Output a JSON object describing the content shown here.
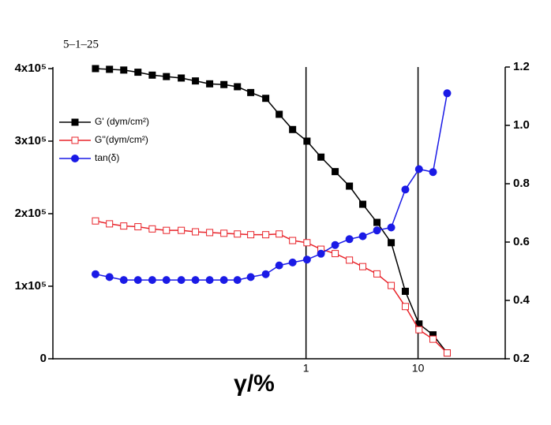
{
  "chart_data": {
    "type": "line",
    "title": "5–1–25",
    "xlabel": "γ/%",
    "xscale": "log",
    "xlim": [
      0.0055,
      60
    ],
    "xticks": [
      1,
      10
    ],
    "grid": true,
    "ylim": [
      0,
      400000
    ],
    "yticks": [
      0,
      {
        "value": 100000,
        "label": "1x10⁵"
      },
      {
        "value": 200000,
        "label": "2x10⁵"
      },
      {
        "value": 300000,
        "label": "3x10⁵"
      },
      {
        "value": 400000,
        "label": "4x10⁵"
      }
    ],
    "y2lim": [
      0.2,
      1.2
    ],
    "y2ticks": [
      0.2,
      0.4,
      0.6,
      0.8,
      {
        "value": 1,
        "label": "1.0"
      },
      1.2
    ],
    "legend": "upper left",
    "x": [
      0.0132,
      0.0176,
      0.0236,
      0.0316,
      0.0424,
      0.0567,
      0.077,
      0.103,
      0.138,
      0.185,
      0.244,
      0.321,
      0.437,
      0.576,
      0.759,
      1.02,
      1.36,
      1.82,
      2.44,
      3.21,
      4.3,
      5.76,
      7.7,
      10.2,
      13.6,
      18.2
    ],
    "series": [
      {
        "name": "G' (dym/cm²)",
        "color": "#000000",
        "marker": "square",
        "filled": true,
        "values": [
          400000,
          399000,
          398000,
          395000,
          391000,
          389000,
          387000,
          383000,
          379000,
          378000,
          375000,
          367000,
          359000,
          337000,
          316000,
          300000,
          278000,
          258000,
          238000,
          213000,
          188000,
          160000,
          93000,
          48000,
          33000,
          8000
        ]
      },
      {
        "name": "G''(dym/cm²)",
        "color": "#e8232a",
        "marker": "square",
        "filled": false,
        "values": [
          190000,
          186000,
          183000,
          182000,
          179000,
          177000,
          177000,
          175000,
          174000,
          173000,
          172000,
          171000,
          171000,
          172000,
          163000,
          160000,
          151000,
          145000,
          136000,
          127000,
          117000,
          101000,
          72000,
          40000,
          27000,
          8000
        ]
      },
      {
        "name": "tan(δ)",
        "color": "#1a1ae6",
        "marker": "circle",
        "filled": true,
        "axis": "y2",
        "values": [
          0.49,
          0.48,
          0.47,
          0.47,
          0.47,
          0.47,
          0.47,
          0.47,
          0.47,
          0.47,
          0.47,
          0.48,
          0.49,
          0.52,
          0.53,
          0.54,
          0.56,
          0.59,
          0.61,
          0.62,
          0.64,
          0.65,
          0.78,
          0.85,
          0.84,
          1.11
        ]
      }
    ]
  }
}
